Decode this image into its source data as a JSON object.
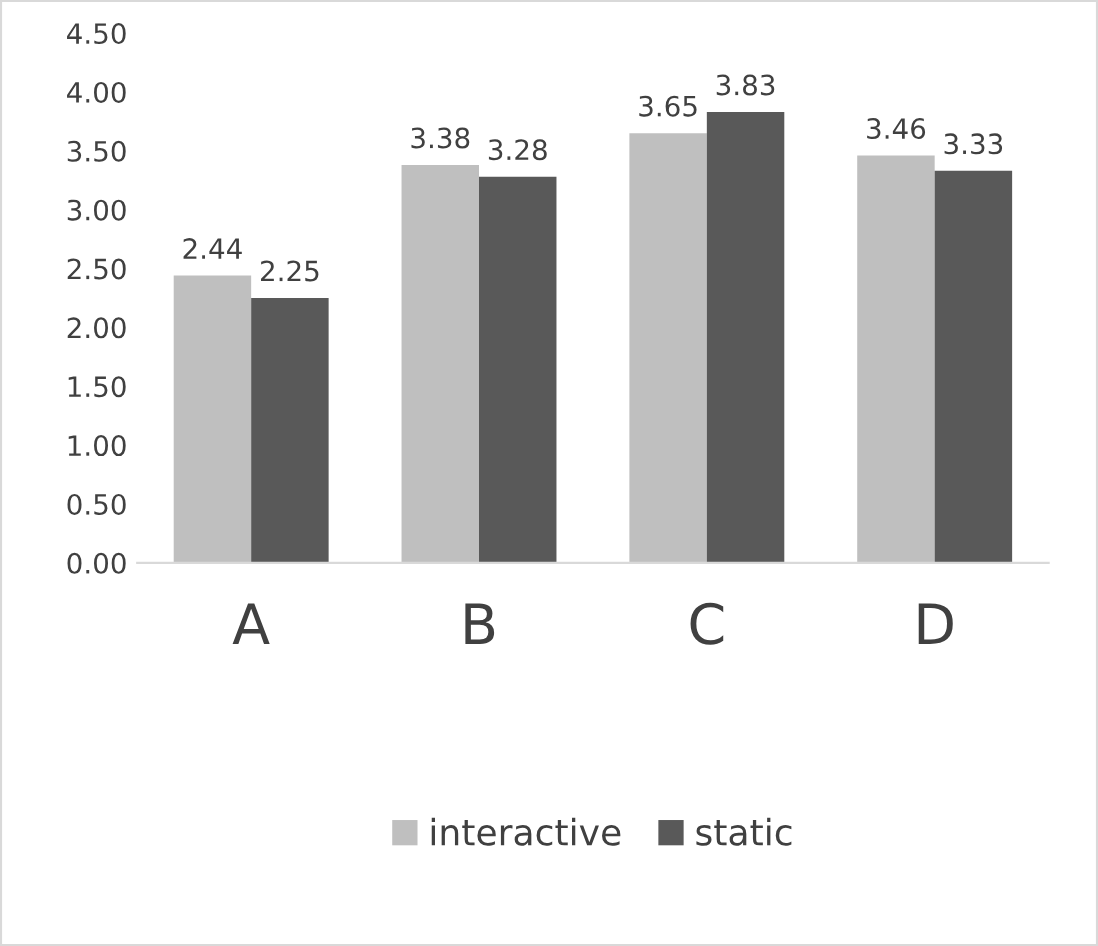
{
  "chart_data": {
    "type": "bar",
    "categories": [
      "A",
      "B",
      "C",
      "D"
    ],
    "series": [
      {
        "name": "interactive",
        "color": "#bfbfbf",
        "values": [
          2.44,
          3.38,
          3.65,
          3.46
        ]
      },
      {
        "name": "static",
        "color": "#595959",
        "values": [
          2.25,
          3.28,
          3.83,
          3.33
        ]
      }
    ],
    "ylim": [
      0,
      4.5
    ],
    "yticks": [
      {
        "value": 0,
        "label": "0.00"
      },
      {
        "value": 0.5,
        "label": "0.50"
      },
      {
        "value": 1,
        "label": "1.00"
      },
      {
        "value": 1.5,
        "label": "1.50"
      },
      {
        "value": 2,
        "label": "2.00"
      },
      {
        "value": 2.5,
        "label": "2.50"
      },
      {
        "value": 3,
        "label": "3.00"
      },
      {
        "value": 3.5,
        "label": "3.50"
      },
      {
        "value": 4,
        "label": "4.00"
      },
      {
        "value": 4.5,
        "label": "4.50"
      }
    ],
    "data_labels": true,
    "grid": false,
    "legend": "bottom"
  }
}
